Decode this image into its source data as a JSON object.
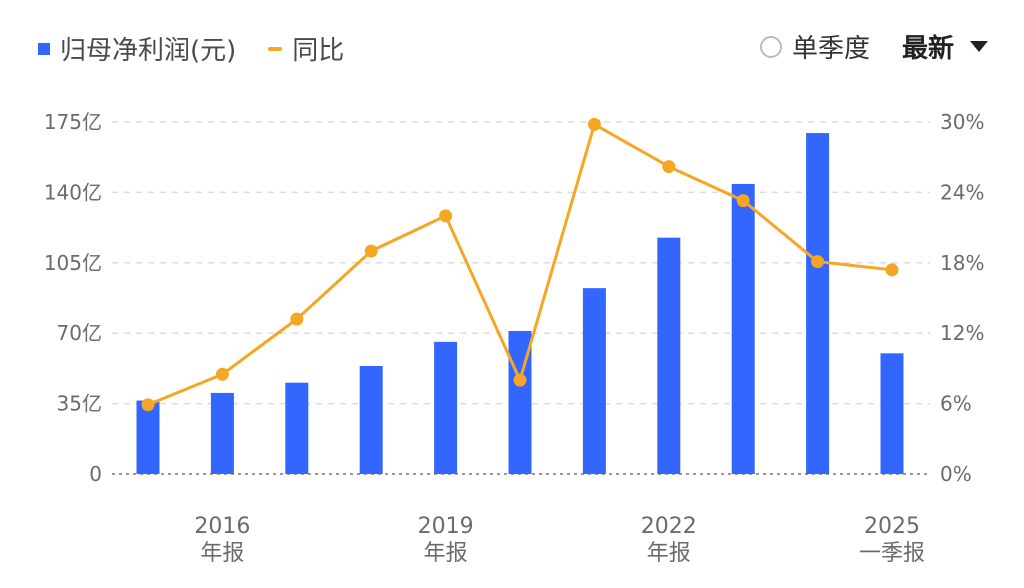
{
  "legend": {
    "bar_label": "归母净利润(元)",
    "line_label": "同比"
  },
  "controls": {
    "quarter_label": "单季度",
    "period_label": "最新"
  },
  "colors": {
    "bar": "#3366ff",
    "line": "#f5a623",
    "grid": "#dddddd",
    "axis_text": "#6b6b6b"
  },
  "chart_data": {
    "type": "bar",
    "categories": [
      "2015年报",
      "2016年报",
      "2017年报",
      "2018年报",
      "2019年报",
      "2020年报",
      "2021年报",
      "2022年报",
      "2023年报",
      "2024年报",
      "2025一季报"
    ],
    "series": [
      {
        "name": "归母净利润(元)",
        "type": "bar",
        "axis": "left",
        "values": [
          36.5,
          40.3,
          45.4,
          53.7,
          65.7,
          71.1,
          92.4,
          117.5,
          144.2,
          169.5,
          60.0
        ]
      },
      {
        "name": "同比",
        "type": "line",
        "axis": "right",
        "values": [
          5.9,
          8.5,
          13.2,
          19.0,
          22.0,
          8.0,
          29.8,
          26.2,
          23.3,
          18.1,
          17.4
        ]
      }
    ],
    "y_left": {
      "min": 0,
      "max": 175,
      "ticks": [
        0,
        35,
        70,
        105,
        140,
        175
      ],
      "tick_labels": [
        "0",
        "35亿",
        "70亿",
        "105亿",
        "140亿",
        "175亿"
      ]
    },
    "y_right": {
      "min": 0,
      "max": 30,
      "ticks": [
        0,
        6,
        12,
        18,
        24,
        30
      ],
      "tick_labels": [
        "0%",
        "6%",
        "12%",
        "18%",
        "24%",
        "30%"
      ]
    },
    "x_tick_labels": [
      {
        "category_index": 1,
        "line1": "2016",
        "line2": "年报"
      },
      {
        "category_index": 4,
        "line1": "2019",
        "line2": "年报"
      },
      {
        "category_index": 7,
        "line1": "2022",
        "line2": "年报"
      },
      {
        "category_index": 10,
        "line1": "2025",
        "line2": "一季报"
      }
    ],
    "grid": true,
    "legend_position": "top-left"
  }
}
